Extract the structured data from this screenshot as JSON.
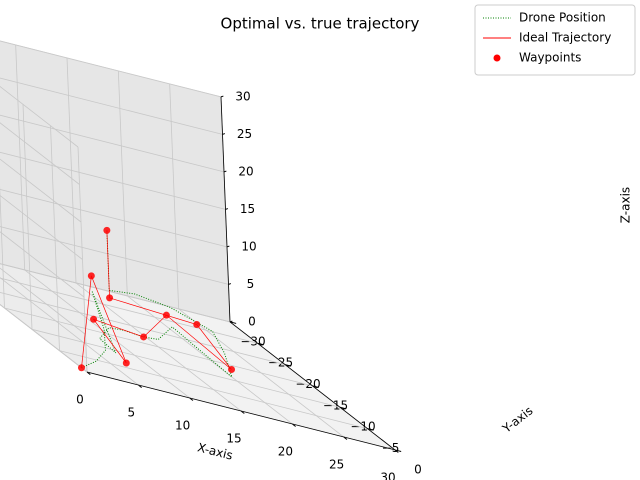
{
  "chart_data": {
    "type": "line3d",
    "title": "Optimal vs. true trajectory",
    "xlabel": "X-axis",
    "ylabel": "Y-axis",
    "zlabel": "Z-axis",
    "xlim": [
      0,
      30
    ],
    "ylim": [
      -30,
      0
    ],
    "zlim": [
      0,
      30
    ],
    "xticks": [
      0,
      5,
      10,
      15,
      20,
      25,
      30
    ],
    "yticks": [
      {
        "value": -30,
        "label": "−30"
      },
      {
        "value": -25,
        "label": "−25"
      },
      {
        "value": -20,
        "label": "−20"
      },
      {
        "value": -15,
        "label": "−15"
      },
      {
        "value": -10,
        "label": "−10"
      },
      {
        "value": -5,
        "label": "−5"
      },
      0
    ],
    "zticks": [
      0,
      5,
      10,
      15,
      20,
      25,
      30
    ],
    "grid": true,
    "legend": "upper right",
    "series": [
      {
        "name": "Drone Position",
        "kind": "line",
        "style": "dotted",
        "color": "#008000",
        "x": [
          0,
          2,
          4,
          5,
          5,
          5,
          5,
          4,
          6,
          9,
          12,
          15,
          18,
          19,
          20,
          22,
          23,
          20,
          16,
          13,
          13,
          13
        ],
        "y": [
          -1,
          -2,
          -4,
          -6,
          -8,
          -6,
          -4,
          -5,
          -7,
          -10,
          -12,
          -15,
          -18,
          -15,
          -11,
          -16,
          -20,
          -22,
          -21,
          -20,
          -20,
          -20
        ],
        "z": [
          0,
          1,
          2,
          4,
          8,
          5,
          2,
          3,
          4,
          3,
          2,
          1,
          2,
          1,
          0,
          1,
          2,
          3,
          4,
          4,
          8,
          12
        ]
      },
      {
        "name": "Ideal Trajectory",
        "kind": "line",
        "style": "solid",
        "color": "#ff0000",
        "x": [
          0,
          5,
          6,
          4,
          12,
          18,
          20,
          22,
          13,
          13
        ],
        "y": [
          -1,
          -8,
          -4,
          -6,
          -12,
          -19,
          -11,
          -21,
          -20,
          -20
        ],
        "z": [
          0,
          10,
          1,
          5,
          2,
          3,
          1,
          2,
          3,
          12
        ]
      },
      {
        "name": "Waypoints",
        "kind": "scatter",
        "color": "#ff0000",
        "x": [
          0,
          5,
          6,
          4,
          12,
          18,
          20,
          22,
          13,
          13
        ],
        "y": [
          -1,
          -8,
          -4,
          -6,
          -12,
          -19,
          -11,
          -21,
          -20,
          -20
        ],
        "z": [
          0,
          10,
          1,
          5,
          2,
          3,
          1,
          2,
          3,
          12
        ]
      }
    ]
  }
}
